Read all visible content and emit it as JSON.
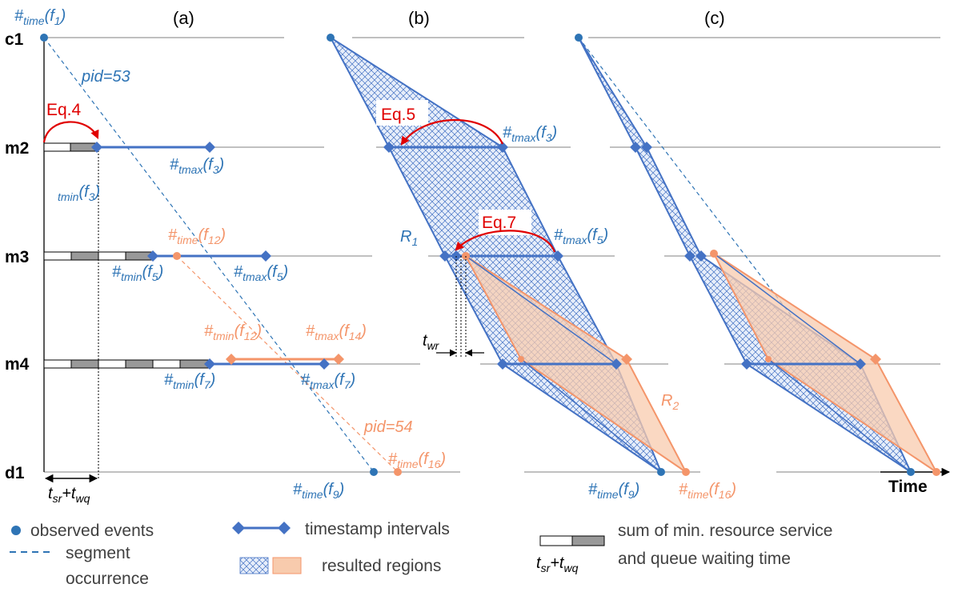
{
  "panels": {
    "a": "(a)",
    "b": "(b)",
    "c": "(c)"
  },
  "rows": {
    "c1": "c1",
    "m2": "m2",
    "m3": "m3",
    "m4": "m4",
    "d1": "d1"
  },
  "panel_a": {
    "time_f1": {
      "main": "#",
      "sub": "time",
      "arg": "(f",
      "argsub": "1",
      "close": ")"
    },
    "pid53": "pid=53",
    "eq4": "Eq.4",
    "tmax_f3": {
      "main": "#",
      "sub": "tmax",
      "arg": "(f",
      "argsub": "3",
      "close": ")"
    },
    "tmin_f3": {
      "sub": "tmin",
      "arg": "(f",
      "argsub": "3",
      "close": ")"
    },
    "time_f12": {
      "main": "#",
      "sub": "time",
      "arg": "(f",
      "argsub": "12",
      "close": ")"
    },
    "tmin_f5": {
      "main": "#",
      "sub": "tmin",
      "arg": "(f",
      "argsub": "5",
      "close": ")"
    },
    "tmax_f5": {
      "main": "#",
      "sub": "tmax",
      "arg": "(f",
      "argsub": "5",
      "close": ")"
    },
    "tmin_f12": {
      "main": "#",
      "sub": "tmin",
      "arg": "(f",
      "argsub": "12",
      "close": ")"
    },
    "tmax_f14": {
      "main": "#",
      "sub": "tmax",
      "arg": "(f",
      "argsub": "14",
      "close": ")"
    },
    "tmin_f7": {
      "main": "#",
      "sub": "tmin",
      "arg": "(f",
      "argsub": "7",
      "close": ")"
    },
    "tmax_f7": {
      "main": "#",
      "sub": "tmax",
      "arg": "(f",
      "argsub": "7",
      "close": ")"
    },
    "pid54": "pid=54",
    "time_f9": {
      "main": "#",
      "sub": "time",
      "arg": "(f",
      "argsub": "9",
      "close": ")"
    },
    "time_f16": {
      "main": "#",
      "sub": "time",
      "arg": "(f",
      "argsub": "16",
      "close": ")"
    },
    "tsr_twq": {
      "t1": "t",
      "s1": "sr",
      "plus": "+",
      "t2": "t",
      "s2": "wq"
    }
  },
  "panel_b": {
    "eq5": "Eq.5",
    "tmax_f3": {
      "main": "#",
      "sub": "tmax",
      "arg": "(f",
      "argsub": "3",
      "close": ")"
    },
    "eq7": "Eq.7",
    "tmax_f5": {
      "main": "#",
      "sub": "tmax",
      "arg": "(f",
      "argsub": "5",
      "close": ")"
    },
    "r1": {
      "main": "R",
      "sub": "1"
    },
    "twr": {
      "main": "t",
      "sub": "wr"
    },
    "r2": {
      "main": "R",
      "sub": "2"
    },
    "time_f9": {
      "main": "#",
      "sub": "time",
      "arg": "(f",
      "argsub": "9",
      "close": ")"
    },
    "time_f16": {
      "main": "#",
      "sub": "time",
      "arg": "(f",
      "argsub": "16",
      "close": ")"
    }
  },
  "panel_c": {
    "time_axis": "Time"
  },
  "legend": {
    "observed": "observed events",
    "segment_1": "segment",
    "segment_2": "occurrence",
    "intervals": "timestamp intervals",
    "regions": "resulted regions",
    "sum_1": "sum of min. resource service",
    "sum_2": "and queue waiting time",
    "tsr_twq": {
      "t1": "t",
      "s1": "sr",
      "plus": "+",
      "t2": "t",
      "s2": "wq"
    }
  },
  "colors": {
    "blue": "#4472c4",
    "blue_text": "#2e74b5",
    "orange": "#f4956a",
    "orange_fill": "#f8cbad",
    "red": "#e00000",
    "gray_block": "#999999"
  }
}
